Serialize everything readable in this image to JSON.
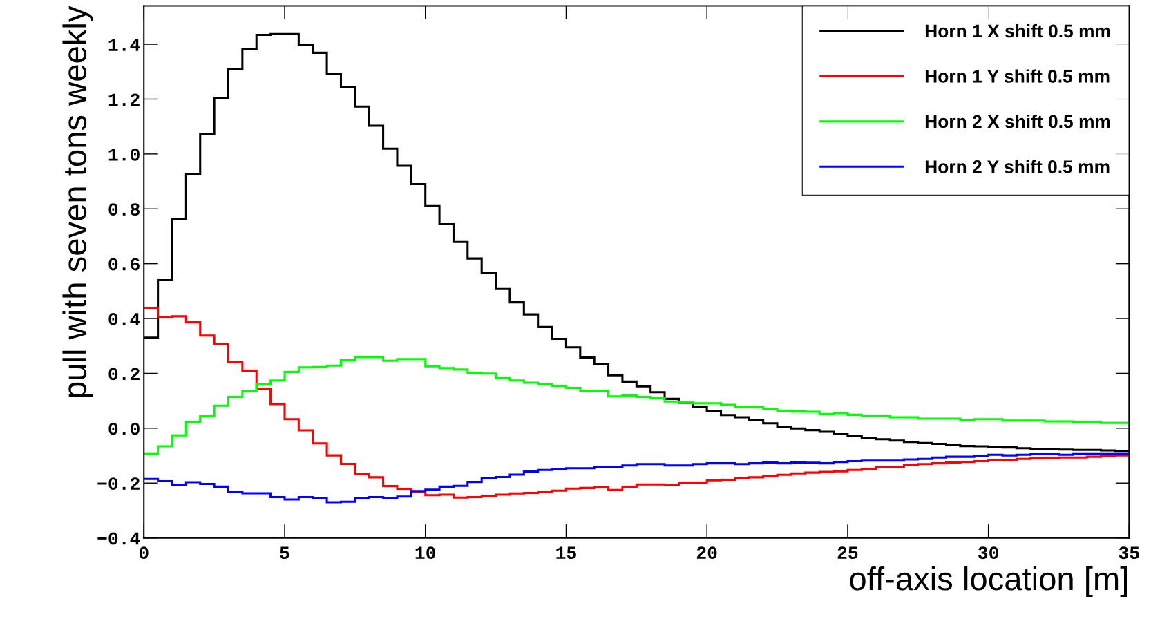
{
  "chart_data": {
    "type": "histogram",
    "xlabel": "off-axis location [m]",
    "ylabel": "pull with seven tons weekly",
    "bins": [
      0,
      0.5,
      1,
      1.5,
      2,
      2.5,
      3,
      3.5,
      4,
      4.5,
      5,
      5.5,
      6,
      6.5,
      7,
      7.5,
      8,
      8.5,
      9,
      9.5,
      10,
      10.5,
      11,
      11.5,
      12,
      12.5,
      13,
      13.5,
      14,
      14.5,
      15,
      15.5,
      16,
      16.5,
      17,
      17.5,
      18,
      18.5,
      19,
      19.5,
      20,
      20.5,
      21,
      21.5,
      22,
      22.5,
      23,
      23.5,
      24,
      24.5,
      25,
      25.5,
      26,
      26.5,
      27,
      27.5,
      28,
      28.5,
      29,
      29.5,
      30,
      30.5,
      31,
      31.5,
      32,
      32.5,
      33,
      33.5,
      34,
      34.5,
      35
    ],
    "series": [
      {
        "name": "Horn 1 X shift 0.5 mm",
        "color": "#000000",
        "values": [
          0.33,
          0.54,
          0.763,
          0.926,
          1.074,
          1.205,
          1.309,
          1.382,
          1.434,
          1.437,
          1.437,
          1.399,
          1.369,
          1.292,
          1.245,
          1.173,
          1.103,
          1.019,
          0.957,
          0.89,
          0.81,
          0.744,
          0.679,
          0.619,
          0.567,
          0.508,
          0.459,
          0.415,
          0.369,
          0.326,
          0.295,
          0.258,
          0.233,
          0.193,
          0.17,
          0.153,
          0.131,
          0.107,
          0.093,
          0.079,
          0.063,
          0.048,
          0.04,
          0.03,
          0.018,
          0.006,
          -0.001,
          -0.007,
          -0.013,
          -0.022,
          -0.029,
          -0.037,
          -0.04,
          -0.045,
          -0.05,
          -0.054,
          -0.057,
          -0.061,
          -0.065,
          -0.066,
          -0.069,
          -0.07,
          -0.073,
          -0.076,
          -0.076,
          -0.078,
          -0.079,
          -0.079,
          -0.081,
          -0.083
        ]
      },
      {
        "name": "Horn 1 Y shift 0.5 mm",
        "color": "#ff0000",
        "values": [
          0.438,
          0.404,
          0.408,
          0.386,
          0.338,
          0.308,
          0.24,
          0.21,
          0.144,
          0.088,
          0.033,
          -0.008,
          -0.055,
          -0.099,
          -0.13,
          -0.168,
          -0.179,
          -0.211,
          -0.221,
          -0.232,
          -0.244,
          -0.242,
          -0.253,
          -0.251,
          -0.247,
          -0.242,
          -0.238,
          -0.236,
          -0.232,
          -0.228,
          -0.22,
          -0.218,
          -0.216,
          -0.225,
          -0.214,
          -0.205,
          -0.205,
          -0.208,
          -0.199,
          -0.198,
          -0.19,
          -0.188,
          -0.182,
          -0.179,
          -0.175,
          -0.17,
          -0.165,
          -0.162,
          -0.159,
          -0.157,
          -0.152,
          -0.149,
          -0.142,
          -0.142,
          -0.134,
          -0.131,
          -0.128,
          -0.125,
          -0.123,
          -0.12,
          -0.115,
          -0.117,
          -0.112,
          -0.109,
          -0.108,
          -0.107,
          -0.107,
          -0.104,
          -0.101,
          -0.099
        ]
      },
      {
        "name": "Horn 2 X shift 0.5 mm",
        "color": "#00ff00",
        "values": [
          -0.092,
          -0.066,
          -0.026,
          0.023,
          0.044,
          0.082,
          0.114,
          0.135,
          0.16,
          0.174,
          0.205,
          0.222,
          0.223,
          0.228,
          0.248,
          0.259,
          0.259,
          0.246,
          0.252,
          0.252,
          0.226,
          0.219,
          0.214,
          0.202,
          0.199,
          0.184,
          0.174,
          0.166,
          0.16,
          0.154,
          0.147,
          0.137,
          0.137,
          0.116,
          0.119,
          0.114,
          0.109,
          0.097,
          0.094,
          0.091,
          0.091,
          0.085,
          0.077,
          0.077,
          0.07,
          0.064,
          0.061,
          0.06,
          0.052,
          0.055,
          0.049,
          0.046,
          0.046,
          0.04,
          0.04,
          0.035,
          0.035,
          0.035,
          0.03,
          0.033,
          0.033,
          0.028,
          0.028,
          0.028,
          0.025,
          0.025,
          0.023,
          0.023,
          0.019,
          0.019
        ]
      },
      {
        "name": "Horn 2 Y shift 0.5 mm",
        "color": "#0000ff",
        "values": [
          -0.185,
          -0.193,
          -0.206,
          -0.197,
          -0.203,
          -0.213,
          -0.232,
          -0.237,
          -0.237,
          -0.251,
          -0.26,
          -0.251,
          -0.255,
          -0.27,
          -0.268,
          -0.256,
          -0.251,
          -0.255,
          -0.249,
          -0.229,
          -0.224,
          -0.213,
          -0.21,
          -0.196,
          -0.182,
          -0.178,
          -0.169,
          -0.158,
          -0.152,
          -0.15,
          -0.146,
          -0.146,
          -0.141,
          -0.141,
          -0.136,
          -0.131,
          -0.131,
          -0.136,
          -0.136,
          -0.131,
          -0.128,
          -0.128,
          -0.131,
          -0.128,
          -0.125,
          -0.128,
          -0.125,
          -0.126,
          -0.128,
          -0.123,
          -0.12,
          -0.118,
          -0.118,
          -0.118,
          -0.114,
          -0.112,
          -0.107,
          -0.104,
          -0.104,
          -0.1,
          -0.097,
          -0.099,
          -0.097,
          -0.094,
          -0.094,
          -0.097,
          -0.092,
          -0.092,
          -0.092,
          -0.092
        ]
      }
    ],
    "xlim": [
      0,
      35
    ],
    "xticks": [
      0,
      5,
      10,
      15,
      20,
      25,
      30,
      35
    ],
    "ylim": [
      -0.4,
      1.54
    ],
    "yticks": [
      {
        "value": -0.4,
        "label": "−0.4"
      },
      {
        "value": -0.2,
        "label": "−0.2"
      },
      {
        "value": 0,
        "label": "0.0"
      },
      {
        "value": 0.2,
        "label": "0.2"
      },
      {
        "value": 0.4,
        "label": "0.4"
      },
      {
        "value": 0.6,
        "label": "0.6"
      },
      {
        "value": 0.8,
        "label": "0.8"
      },
      {
        "value": 1.0,
        "label": "1.0"
      },
      {
        "value": 1.2,
        "label": "1.2"
      },
      {
        "value": 1.4,
        "label": "1.4"
      }
    ],
    "grid": false,
    "legend": "top right"
  }
}
